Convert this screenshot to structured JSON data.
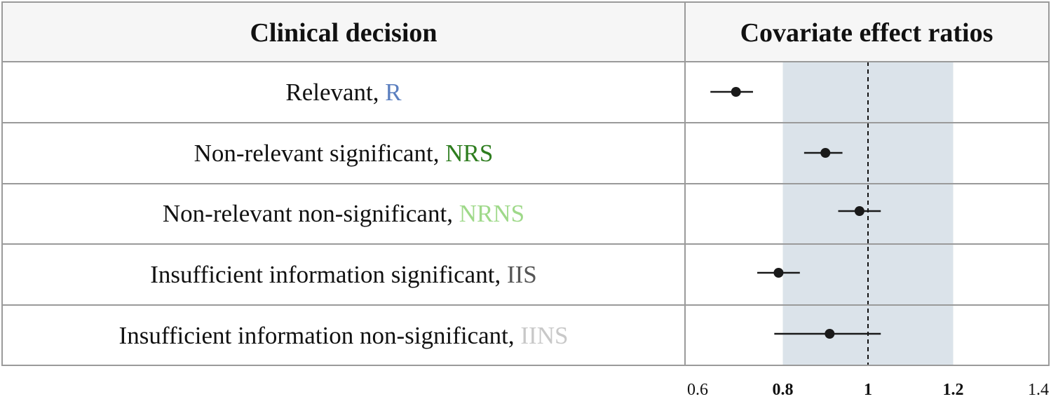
{
  "header": {
    "left": "Clinical decision",
    "right": "Covariate effect ratios"
  },
  "rows": [
    {
      "label": "Relevant,",
      "code": "R",
      "code_color": "#5b7fbf"
    },
    {
      "label": "Non-relevant significant,",
      "code": "NRS",
      "code_color": "#2e7d1f"
    },
    {
      "label": "Non-relevant non-significant,",
      "code": "NRNS",
      "code_color": "#9fd98a"
    },
    {
      "label": "Insufficient information significant,",
      "code": "IIS",
      "code_color": "#555555"
    },
    {
      "label": "Insufficient information non-significant,",
      "code": "IINS",
      "code_color": "#c8c8c8"
    }
  ],
  "chart_data": {
    "type": "forest",
    "reference_line": 1,
    "reference_band": [
      0.8,
      1.2
    ],
    "xlim": [
      0.6,
      1.4
    ],
    "ticks": [
      {
        "value": 0.6,
        "label": "0.6",
        "bold": false
      },
      {
        "value": 0.8,
        "label": "0.8",
        "bold": true
      },
      {
        "value": 1.0,
        "label": "1",
        "bold": true
      },
      {
        "value": 1.2,
        "label": "1.2",
        "bold": true
      },
      {
        "value": 1.4,
        "label": "1.4",
        "bold": false
      }
    ],
    "points": [
      {
        "category": "R",
        "estimate": 0.69,
        "lower": 0.63,
        "upper": 0.73
      },
      {
        "category": "NRS",
        "estimate": 0.9,
        "lower": 0.85,
        "upper": 0.94
      },
      {
        "category": "NRNS",
        "estimate": 0.98,
        "lower": 0.93,
        "upper": 1.03
      },
      {
        "category": "IIS",
        "estimate": 0.79,
        "lower": 0.74,
        "upper": 0.84
      },
      {
        "category": "IINS",
        "estimate": 0.91,
        "lower": 0.78,
        "upper": 1.03
      }
    ],
    "band_color": "#dbe3ea",
    "point_color": "#1a1a1a"
  }
}
